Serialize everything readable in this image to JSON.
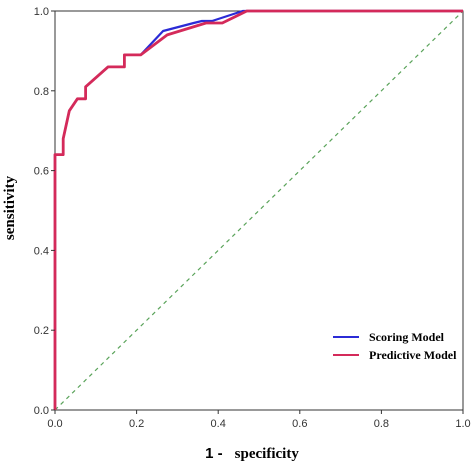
{
  "chart_data": {
    "type": "line",
    "title": "",
    "xlabel_prefix": "1 -",
    "xlabel": "specificity",
    "ylabel": "sensitivity",
    "xlim": [
      0,
      1
    ],
    "ylim": [
      0,
      1
    ],
    "x_ticks": [
      "0.0",
      "0.2",
      "0.4",
      "0.6",
      "0.8",
      "1.0"
    ],
    "y_ticks": [
      "0.0",
      "0.2",
      "0.4",
      "0.6",
      "0.8",
      "1.0"
    ],
    "grid": false,
    "legend_position": "bottom-right",
    "reference_line": {
      "x": [
        0,
        1
      ],
      "y": [
        0,
        1
      ],
      "color": "#5aa35a",
      "style": "dashed"
    },
    "series": [
      {
        "name": "Scoring Model",
        "color": "#2b2bd6",
        "x": [
          0,
          0,
          0.02,
          0.02,
          0.035,
          0.055,
          0.075,
          0.075,
          0.13,
          0.17,
          0.17,
          0.21,
          0.265,
          0.34,
          0.36,
          0.385,
          0.46,
          1.0
        ],
        "y": [
          0,
          0.64,
          0.64,
          0.68,
          0.75,
          0.78,
          0.78,
          0.81,
          0.86,
          0.86,
          0.89,
          0.89,
          0.95,
          0.97,
          0.975,
          0.975,
          1.0,
          1.0
        ]
      },
      {
        "name": "Predictive Model",
        "color": "#d42a5a",
        "x": [
          0,
          0,
          0.02,
          0.02,
          0.035,
          0.055,
          0.075,
          0.075,
          0.13,
          0.17,
          0.17,
          0.21,
          0.275,
          0.37,
          0.41,
          0.47,
          1.0
        ],
        "y": [
          0,
          0.64,
          0.64,
          0.68,
          0.75,
          0.78,
          0.78,
          0.81,
          0.86,
          0.86,
          0.89,
          0.89,
          0.94,
          0.97,
          0.97,
          1.0,
          1.0
        ]
      }
    ]
  }
}
